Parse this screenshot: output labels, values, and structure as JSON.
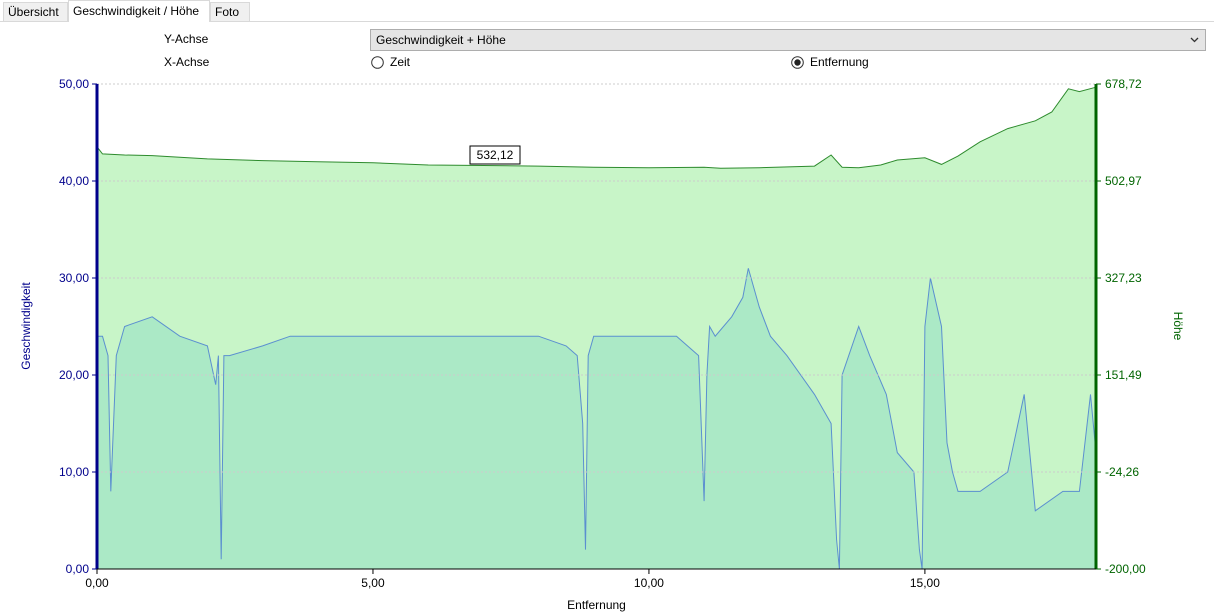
{
  "tabs": [
    {
      "label": "Übersicht",
      "active": false
    },
    {
      "label": "Geschwindigkeit / Höhe",
      "active": true
    },
    {
      "label": "Foto",
      "active": false
    }
  ],
  "controls": {
    "y_axis_label": "Y-Achse",
    "y_axis_value": "Geschwindigkeit + Höhe",
    "x_axis_label": "X-Achse",
    "x_options": [
      {
        "label": "Zeit",
        "selected": false
      },
      {
        "label": "Entfernung",
        "selected": true
      }
    ]
  },
  "chart_data": {
    "type": "area",
    "xlabel": "Entfernung",
    "ylabel_left": "Geschwindigkeit",
    "ylabel_right": "Höhe",
    "x_ticks": [
      "0,00",
      "5,00",
      "10,00",
      "15,00"
    ],
    "y_left_ticks": [
      "0,00",
      "10,00",
      "20,00",
      "30,00",
      "40,00",
      "50,00"
    ],
    "y_right_ticks": [
      "-200,00",
      "-24,26",
      "151,49",
      "327,23",
      "502,97",
      "678,72"
    ],
    "xlim": [
      0,
      18.1
    ],
    "ylim_left": [
      0,
      50
    ],
    "ylim_right": [
      -200,
      678.72
    ],
    "grid": true,
    "tooltip": "532,12",
    "colors": {
      "speed_line": "#5b8fd0",
      "speed_fill": "#a6e6c6",
      "elevation_line": "#2e8b2e",
      "elevation_fill": "#c8f5c8",
      "left_axis": "#00008b",
      "right_axis": "#006400",
      "grid": "#cccccc"
    },
    "series": [
      {
        "name": "Höhe",
        "x": [
          0,
          0.1,
          0.5,
          1,
          2,
          3,
          4,
          5,
          6,
          7,
          8,
          9,
          10,
          11,
          11.3,
          12,
          13,
          13.3,
          13.5,
          13.8,
          14.2,
          14.5,
          15,
          15.3,
          15.6,
          16,
          16.5,
          17,
          17.3,
          17.6,
          17.8,
          18.1
        ],
        "y": [
          565,
          552,
          550,
          549,
          543,
          540,
          538,
          536,
          532,
          531,
          530,
          528,
          527,
          528,
          526,
          527,
          530,
          550,
          528,
          527,
          532,
          541,
          545,
          533,
          548,
          574,
          598,
          612,
          628,
          670,
          665,
          673
        ]
      },
      {
        "name": "Geschwindigkeit",
        "x": [
          0,
          0.1,
          0.2,
          0.25,
          0.35,
          0.5,
          1,
          1.5,
          2,
          2.15,
          2.2,
          2.25,
          2.3,
          2.4,
          3,
          3.5,
          4,
          4.5,
          5,
          5.5,
          6,
          7,
          7.5,
          8,
          8.5,
          8.7,
          8.8,
          8.85,
          8.9,
          9,
          9.5,
          10,
          10.5,
          10.9,
          11,
          11.05,
          11.1,
          11.2,
          11.5,
          11.7,
          11.8,
          12,
          12.2,
          12.5,
          13,
          13.3,
          13.4,
          13.45,
          13.5,
          13.8,
          14,
          14.3,
          14.5,
          14.8,
          14.9,
          14.95,
          15,
          15.1,
          15.3,
          15.4,
          15.5,
          15.6,
          16,
          16.5,
          16.8,
          17,
          17.5,
          17.8,
          18,
          18.1
        ],
        "y": [
          24,
          24,
          22,
          8,
          22,
          25,
          26,
          24,
          23,
          19,
          22,
          1,
          22,
          22,
          23,
          24,
          24,
          24,
          24,
          24,
          24,
          24,
          24,
          24,
          23,
          22,
          15,
          2,
          22,
          24,
          24,
          24,
          24,
          22,
          7,
          20,
          25,
          24,
          26,
          28,
          31,
          27,
          24,
          22,
          18,
          15,
          3,
          0,
          20,
          25,
          22,
          18,
          12,
          10,
          2,
          0,
          25,
          30,
          25,
          13,
          10,
          8,
          8,
          10,
          18,
          6,
          8,
          8,
          18,
          12
        ]
      }
    ]
  }
}
